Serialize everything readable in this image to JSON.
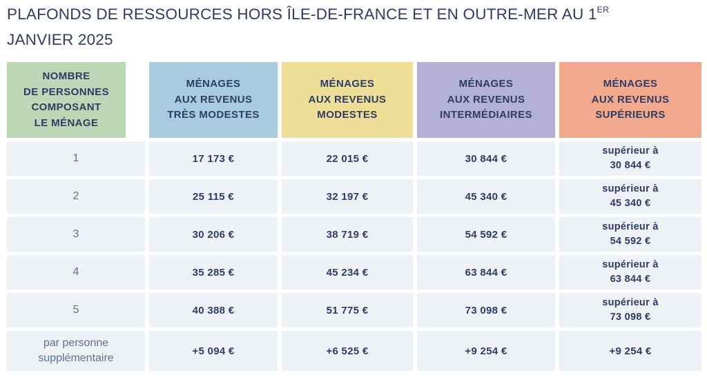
{
  "title": {
    "line1_text": "PLAFONDS DE RESSOURCES HORS ÎLE-DE-FRANCE ET EN OUTRE-MER AU 1",
    "line1_sup": "ER",
    "line2": "JANVIER 2025"
  },
  "colors": {
    "text_navy": "#2e3c63",
    "row_label_text": "#5e6e95",
    "cell_bg": "#eef2f7"
  },
  "table": {
    "columns": [
      {
        "label": "NOMBRE\nDE PERSONNES\nCOMPOSANT\nLE MÉNAGE",
        "color": "#bdd8b6"
      },
      {
        "label": "MÉNAGES\nAUX REVENUS\nTRÈS MODESTES",
        "color": "#a9cbdf"
      },
      {
        "label": "MÉNAGES\nAUX REVENUS\nMODESTES",
        "color": "#eede97"
      },
      {
        "label": "MÉNAGES\nAUX REVENUS\nINTERMÉDIAIRES",
        "color": "#b4b0d6"
      },
      {
        "label": "MÉNAGES\nAUX REVENUS\nSUPÉRIEURS",
        "color": "#f3a98c"
      }
    ],
    "rows": [
      {
        "cells": [
          "1",
          "17 173 €",
          "22 015 €",
          "30 844 €",
          "supérieur à\n30 844 €"
        ]
      },
      {
        "cells": [
          "2",
          "25 115 €",
          "32 197 €",
          "45 340 €",
          "supérieur à\n45 340 €"
        ]
      },
      {
        "cells": [
          "3",
          "30 206 €",
          "38 719 €",
          "54 592 €",
          "supérieur à\n54 592 €"
        ]
      },
      {
        "cells": [
          "4",
          "35 285 €",
          "45 234 €",
          "63 844 €",
          "supérieur à\n63 844 €"
        ]
      },
      {
        "cells": [
          "5",
          "40 388 €",
          "51 775 €",
          "73 098 €",
          "supérieur à\n73 098 €"
        ]
      },
      {
        "cells": [
          "par personne\nsupplémentaire",
          "+5 094 €",
          "+6 525 €",
          "+9 254 €",
          "+9 254 €"
        ]
      }
    ]
  }
}
